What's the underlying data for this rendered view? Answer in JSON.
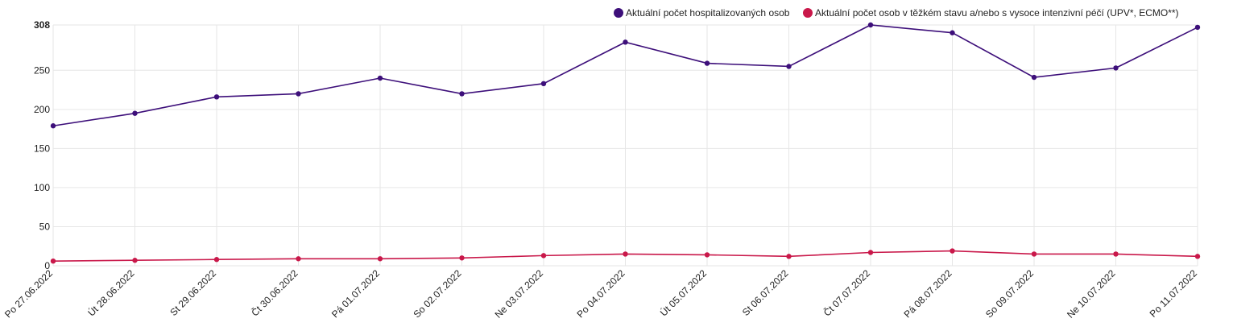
{
  "chart_data": {
    "type": "line",
    "categories": [
      "Po 27.06.2022",
      "Út 28.06.2022",
      "St 29.06.2022",
      "Čt 30.06.2022",
      "Pá 01.07.2022",
      "So 02.07.2022",
      "Ne 03.07.2022",
      "Po 04.07.2022",
      "Út 05.07.2022",
      "St 06.07.2022",
      "Čt 07.07.2022",
      "Pá 08.07.2022",
      "So 09.07.2022",
      "Ne 10.07.2022",
      "Po 11.07.2022"
    ],
    "series": [
      {
        "name": "Aktuální počet hospitalizovaných osob",
        "color": "#3d0f7a",
        "values": [
          179,
          195,
          216,
          220,
          240,
          220,
          233,
          286,
          259,
          255,
          308,
          298,
          241,
          253,
          305
        ]
      },
      {
        "name": "Aktuální počet osob v těžkém stavu a/nebo s vysoce intenzivní péčí (UPV*, ECMO**)",
        "color": "#c9184a",
        "values": [
          6,
          7,
          8,
          9,
          9,
          10,
          13,
          15,
          14,
          12,
          17,
          19,
          15,
          15,
          12
        ]
      }
    ],
    "ylim": [
      0,
      308
    ],
    "yticks": [
      "0",
      "50",
      "100",
      "150",
      "200",
      "250",
      "308"
    ],
    "grid": true,
    "legend": "top-right"
  }
}
